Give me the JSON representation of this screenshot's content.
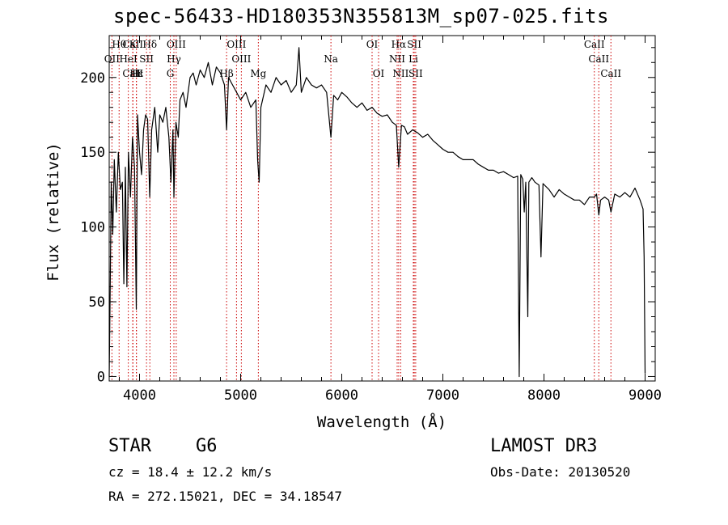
{
  "chart_data": {
    "type": "line",
    "title": "spec-56433-HD180353N355813M_sp07-025.fits",
    "xlabel": "Wavelength (Å)",
    "ylabel": "Flux (relative)",
    "xlim": [
      3700,
      9100
    ],
    "ylim": [
      -3,
      228
    ],
    "xticks": [
      4000,
      5000,
      6000,
      7000,
      8000,
      9000
    ],
    "yticks": [
      0,
      50,
      100,
      150,
      200
    ],
    "grid": false,
    "series": [
      {
        "name": "spectrum",
        "points": [
          [
            3700,
            0
          ],
          [
            3710,
            62
          ],
          [
            3720,
            130
          ],
          [
            3735,
            95
          ],
          [
            3750,
            145
          ],
          [
            3770,
            110
          ],
          [
            3790,
            150
          ],
          [
            3810,
            125
          ],
          [
            3830,
            130
          ],
          [
            3845,
            62
          ],
          [
            3860,
            140
          ],
          [
            3875,
            60
          ],
          [
            3890,
            150
          ],
          [
            3910,
            120
          ],
          [
            3930,
            160
          ],
          [
            3950,
            140
          ],
          [
            3968,
            45
          ],
          [
            3980,
            175
          ],
          [
            4000,
            150
          ],
          [
            4020,
            135
          ],
          [
            4040,
            165
          ],
          [
            4060,
            175
          ],
          [
            4080,
            172
          ],
          [
            4101,
            120
          ],
          [
            4120,
            165
          ],
          [
            4150,
            180
          ],
          [
            4180,
            150
          ],
          [
            4200,
            175
          ],
          [
            4230,
            170
          ],
          [
            4260,
            180
          ],
          [
            4290,
            160
          ],
          [
            4310,
            130
          ],
          [
            4330,
            165
          ],
          [
            4340,
            120
          ],
          [
            4360,
            170
          ],
          [
            4383,
            160
          ],
          [
            4400,
            185
          ],
          [
            4430,
            190
          ],
          [
            4460,
            180
          ],
          [
            4500,
            200
          ],
          [
            4530,
            203
          ],
          [
            4560,
            195
          ],
          [
            4600,
            205
          ],
          [
            4640,
            200
          ],
          [
            4680,
            210
          ],
          [
            4720,
            195
          ],
          [
            4760,
            207
          ],
          [
            4800,
            203
          ],
          [
            4840,
            195
          ],
          [
            4861,
            165
          ],
          [
            4880,
            200
          ],
          [
            4920,
            195
          ],
          [
            4960,
            190
          ],
          [
            5000,
            185
          ],
          [
            5050,
            190
          ],
          [
            5100,
            180
          ],
          [
            5150,
            185
          ],
          [
            5168,
            145
          ],
          [
            5173,
            140
          ],
          [
            5183,
            130
          ],
          [
            5200,
            180
          ],
          [
            5250,
            195
          ],
          [
            5300,
            190
          ],
          [
            5350,
            200
          ],
          [
            5400,
            195
          ],
          [
            5450,
            198
          ],
          [
            5500,
            190
          ],
          [
            5550,
            195
          ],
          [
            5577,
            220
          ],
          [
            5600,
            190
          ],
          [
            5650,
            200
          ],
          [
            5700,
            195
          ],
          [
            5750,
            193
          ],
          [
            5800,
            195
          ],
          [
            5850,
            190
          ],
          [
            5893,
            160
          ],
          [
            5920,
            188
          ],
          [
            5960,
            185
          ],
          [
            6000,
            190
          ],
          [
            6050,
            187
          ],
          [
            6100,
            183
          ],
          [
            6150,
            180
          ],
          [
            6200,
            183
          ],
          [
            6250,
            178
          ],
          [
            6300,
            180
          ],
          [
            6350,
            176
          ],
          [
            6400,
            174
          ],
          [
            6450,
            175
          ],
          [
            6500,
            170
          ],
          [
            6540,
            168
          ],
          [
            6563,
            140
          ],
          [
            6590,
            168
          ],
          [
            6620,
            167
          ],
          [
            6650,
            162
          ],
          [
            6700,
            165
          ],
          [
            6750,
            163
          ],
          [
            6800,
            160
          ],
          [
            6850,
            162
          ],
          [
            6900,
            158
          ],
          [
            6950,
            155
          ],
          [
            7000,
            152
          ],
          [
            7050,
            150
          ],
          [
            7100,
            150
          ],
          [
            7150,
            147
          ],
          [
            7200,
            145
          ],
          [
            7250,
            145
          ],
          [
            7300,
            145
          ],
          [
            7350,
            142
          ],
          [
            7400,
            140
          ],
          [
            7450,
            138
          ],
          [
            7500,
            138
          ],
          [
            7550,
            136
          ],
          [
            7600,
            137
          ],
          [
            7650,
            135
          ],
          [
            7700,
            133
          ],
          [
            7740,
            134
          ],
          [
            7755,
            0
          ],
          [
            7770,
            135
          ],
          [
            7790,
            132
          ],
          [
            7805,
            110
          ],
          [
            7820,
            130
          ],
          [
            7840,
            40
          ],
          [
            7850,
            130
          ],
          [
            7880,
            133
          ],
          [
            7910,
            130
          ],
          [
            7950,
            128
          ],
          [
            7970,
            80
          ],
          [
            7990,
            129
          ],
          [
            8050,
            125
          ],
          [
            8100,
            120
          ],
          [
            8150,
            125
          ],
          [
            8200,
            122
          ],
          [
            8250,
            120
          ],
          [
            8300,
            118
          ],
          [
            8350,
            118
          ],
          [
            8400,
            115
          ],
          [
            8450,
            120
          ],
          [
            8498,
            120
          ],
          [
            8520,
            122
          ],
          [
            8542,
            108
          ],
          [
            8560,
            118
          ],
          [
            8600,
            120
          ],
          [
            8640,
            118
          ],
          [
            8662,
            110
          ],
          [
            8700,
            122
          ],
          [
            8750,
            120
          ],
          [
            8800,
            123
          ],
          [
            8850,
            120
          ],
          [
            8900,
            126
          ],
          [
            8950,
            118
          ],
          [
            8980,
            112
          ],
          [
            8990,
            80
          ],
          [
            9000,
            2
          ]
        ]
      }
    ],
    "line_markers": [
      {
        "label": "Hθ",
        "x": 3798,
        "row": 0
      },
      {
        "label": "CaII",
        "x": 3934,
        "row": 0
      },
      {
        "label": "K",
        "x": 3934,
        "row": 0
      },
      {
        "label": "Hδ",
        "x": 4102,
        "row": 0
      },
      {
        "label": "OIII",
        "x": 4363,
        "row": 0
      },
      {
        "label": "OIII",
        "x": 4959,
        "row": 0
      },
      {
        "label": "OI",
        "x": 6300,
        "row": 0
      },
      {
        "label": "Hα",
        "x": 6563,
        "row": 0
      },
      {
        "label": "SII",
        "x": 6717,
        "row": 0
      },
      {
        "label": "CaII",
        "x": 8498,
        "row": 0
      },
      {
        "label": "OII",
        "x": 3727,
        "row": 1
      },
      {
        "label": "HeI",
        "x": 3889,
        "row": 1
      },
      {
        "label": "SII",
        "x": 4069,
        "row": 1
      },
      {
        "label": "Hγ",
        "x": 4340,
        "row": 1
      },
      {
        "label": "OIII",
        "x": 5007,
        "row": 1
      },
      {
        "label": "Na",
        "x": 5893,
        "row": 1
      },
      {
        "label": "NII",
        "x": 6548,
        "row": 1
      },
      {
        "label": "Li",
        "x": 6708,
        "row": 1
      },
      {
        "label": "CaII",
        "x": 8542,
        "row": 1
      },
      {
        "label": "CaII",
        "x": 3934,
        "row": 2
      },
      {
        "label": "Hε",
        "x": 3970,
        "row": 2
      },
      {
        "label": "H",
        "x": 3968,
        "row": 2
      },
      {
        "label": "G",
        "x": 4304,
        "row": 2
      },
      {
        "label": "Hβ",
        "x": 4861,
        "row": 2
      },
      {
        "label": "Mg",
        "x": 5175,
        "row": 2
      },
      {
        "label": "OI",
        "x": 6364,
        "row": 2
      },
      {
        "label": "NII",
        "x": 6583,
        "row": 2
      },
      {
        "label": "SII",
        "x": 6731,
        "row": 2
      },
      {
        "label": "CaII",
        "x": 8662,
        "row": 2
      }
    ]
  },
  "info": {
    "object_type": "STAR",
    "subclass": "G6",
    "survey": "LAMOST DR3",
    "redshift": "cz = 18.4 ± 12.2 km/s",
    "obs_date": "Obs-Date: 20130520",
    "coords": "RA = 272.15021, DEC =  34.18547"
  }
}
